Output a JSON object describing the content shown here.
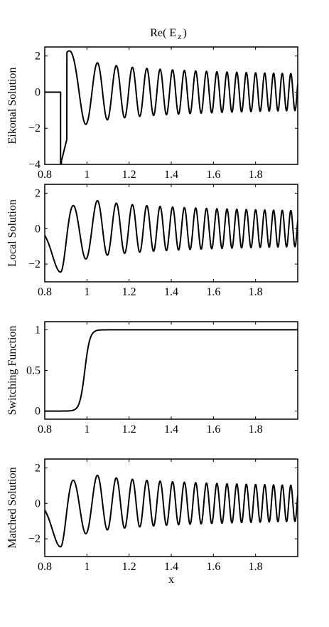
{
  "figure": {
    "title": "Re( E z )",
    "title_main": "Re( E",
    "title_sub": "z",
    "title_close": ")"
  },
  "chart_data": [
    {
      "type": "line",
      "title": "Re( E z )",
      "xlabel": "",
      "ylabel": "Eikonal Solution",
      "xlim": [
        0.8,
        2.0
      ],
      "ylim": [
        -4,
        2.5
      ],
      "xticks": [
        0.8,
        1,
        1.2,
        1.4,
        1.6,
        1.8
      ],
      "xtick_labels": [
        "0.8",
        "1",
        "1.2",
        "1.4",
        "1.6",
        "1.8"
      ],
      "yticks": [
        -4,
        -2,
        0,
        2
      ],
      "ytick_labels": [
        "−4",
        "−2",
        "0",
        "2"
      ],
      "grid": false,
      "kind": "eikonal",
      "turning_point": 0.875
    },
    {
      "type": "line",
      "xlabel": "",
      "ylabel": "Local Solution",
      "xlim": [
        0.8,
        2.0
      ],
      "ylim": [
        -3,
        2.5
      ],
      "xticks": [
        0.8,
        1,
        1.2,
        1.4,
        1.6,
        1.8
      ],
      "xtick_labels": [
        "0.8",
        "1",
        "1.2",
        "1.4",
        "1.6",
        "1.8"
      ],
      "yticks": [
        -2,
        0,
        2
      ],
      "ytick_labels": [
        "−2",
        "0",
        "2"
      ],
      "grid": false,
      "kind": "local"
    },
    {
      "type": "line",
      "xlabel": "",
      "ylabel": "Switching Function",
      "xlim": [
        0.8,
        2.0
      ],
      "ylim": [
        -0.1,
        1.1
      ],
      "xticks": [
        0.8,
        1,
        1.2,
        1.4,
        1.6,
        1.8
      ],
      "xtick_labels": [
        "0.8",
        "1",
        "1.2",
        "1.4",
        "1.6",
        "1.8"
      ],
      "yticks": [
        0,
        0.5,
        1
      ],
      "ytick_labels": [
        "0",
        "0.5",
        "1"
      ],
      "grid": false,
      "kind": "switch",
      "center": 0.99,
      "width": 0.012
    },
    {
      "type": "line",
      "xlabel": "x",
      "ylabel": "Matched Solution",
      "xlim": [
        0.8,
        2.0
      ],
      "ylim": [
        -3,
        2.5
      ],
      "xticks": [
        0.8,
        1,
        1.2,
        1.4,
        1.6,
        1.8
      ],
      "xtick_labels": [
        "0.8",
        "1",
        "1.2",
        "1.4",
        "1.6",
        "1.8"
      ],
      "yticks": [
        -2,
        0,
        2
      ],
      "ytick_labels": [
        "−2",
        "0",
        "2"
      ],
      "grid": false,
      "kind": "local"
    }
  ]
}
